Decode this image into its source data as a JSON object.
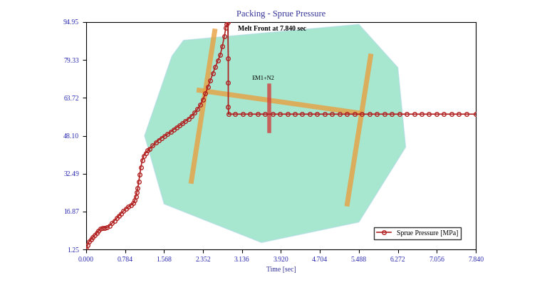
{
  "chart_data": {
    "type": "line",
    "title": "Packing - Sprue Pressure",
    "x_label": "Time [sec]",
    "annotations": [
      "Melt Front at 7.840 sec",
      "EM1+N2"
    ],
    "xlim": [
      0,
      7.84
    ],
    "ylim": [
      1.25,
      94.95
    ],
    "xticks": [
      {
        "value": 0,
        "label": "0.000"
      },
      0.784,
      1.568,
      2.352,
      {
        "value": 3.136,
        "label": "3.136"
      },
      {
        "value": 3.92,
        "label": "3.920"
      },
      4.704,
      5.488,
      6.272,
      7.056,
      {
        "value": 7.84,
        "label": "7.840"
      }
    ],
    "yticks": [
      1.25,
      16.87,
      32.49,
      {
        "value": 48.1,
        "label": "48.10"
      },
      63.72,
      79.33,
      94.95
    ],
    "legend": "lower right",
    "series": [
      {
        "name": "Sprue Pressure [MPa]",
        "color": "#b22222",
        "marker": "o",
        "line_style": "solid",
        "x": [
          0.0,
          0.03,
          0.06,
          0.1,
          0.13,
          0.17,
          0.21,
          0.25,
          0.29,
          0.33,
          0.37,
          0.42,
          0.47,
          0.52,
          0.57,
          0.62,
          0.66,
          0.7,
          0.75,
          0.8,
          0.85,
          0.9,
          0.95,
          0.98,
          1.0,
          1.02,
          1.04,
          1.06,
          1.08,
          1.1,
          1.13,
          1.16,
          1.2,
          1.24,
          1.28,
          1.34,
          1.4,
          1.46,
          1.52,
          1.58,
          1.64,
          1.7,
          1.76,
          1.82,
          1.88,
          1.94,
          2.0,
          2.06,
          2.12,
          2.18,
          2.24,
          2.3,
          2.35,
          2.4,
          2.45,
          2.5,
          2.55,
          2.6,
          2.65,
          2.7,
          2.74,
          2.78,
          2.81,
          2.83,
          2.85,
          2.86,
          2.86,
          2.86,
          2.87,
          3.0,
          3.15,
          3.3,
          3.45,
          3.6,
          3.75,
          3.9,
          4.05,
          4.2,
          4.35,
          4.5,
          4.65,
          4.8,
          4.95,
          5.1,
          5.25,
          5.4,
          5.55,
          5.7,
          5.85,
          6.0,
          6.15,
          6.3,
          6.45,
          6.6,
          6.75,
          6.9,
          7.05,
          7.2,
          7.35,
          7.5,
          7.65,
          7.84
        ],
        "values": [
          1.25,
          3.0,
          4.5,
          5.5,
          6.2,
          7.0,
          8.0,
          9.0,
          9.8,
          10.1,
          10.2,
          10.3,
          11.0,
          12.0,
          13.0,
          14.2,
          15.2,
          16.0,
          17.0,
          18.0,
          18.8,
          19.5,
          20.3,
          21.5,
          23.0,
          24.7,
          26.5,
          29.2,
          32.0,
          35.0,
          38.0,
          39.8,
          41.0,
          42.0,
          42.8,
          44.0,
          45.2,
          46.3,
          47.2,
          48.0,
          48.8,
          49.6,
          50.6,
          51.5,
          52.3,
          53.2,
          54.2,
          55.0,
          56.2,
          57.5,
          59.0,
          61.0,
          63.0,
          65.5,
          68.2,
          71.0,
          73.8,
          76.5,
          79.0,
          81.5,
          85.0,
          89.0,
          92.5,
          94.0,
          94.95,
          80.0,
          70.0,
          60.0,
          57.0,
          57.0,
          57.0,
          57.0,
          57.0,
          57.0,
          57.0,
          57.0,
          57.0,
          57.0,
          57.0,
          57.0,
          57.0,
          57.0,
          57.0,
          57.0,
          57.0,
          57.0,
          57.0,
          57.0,
          57.0,
          57.0,
          57.0,
          57.0,
          57.0,
          57.0,
          57.0,
          57.0,
          57.0,
          57.0,
          57.0,
          57.0,
          57.0,
          57.0
        ]
      }
    ]
  }
}
